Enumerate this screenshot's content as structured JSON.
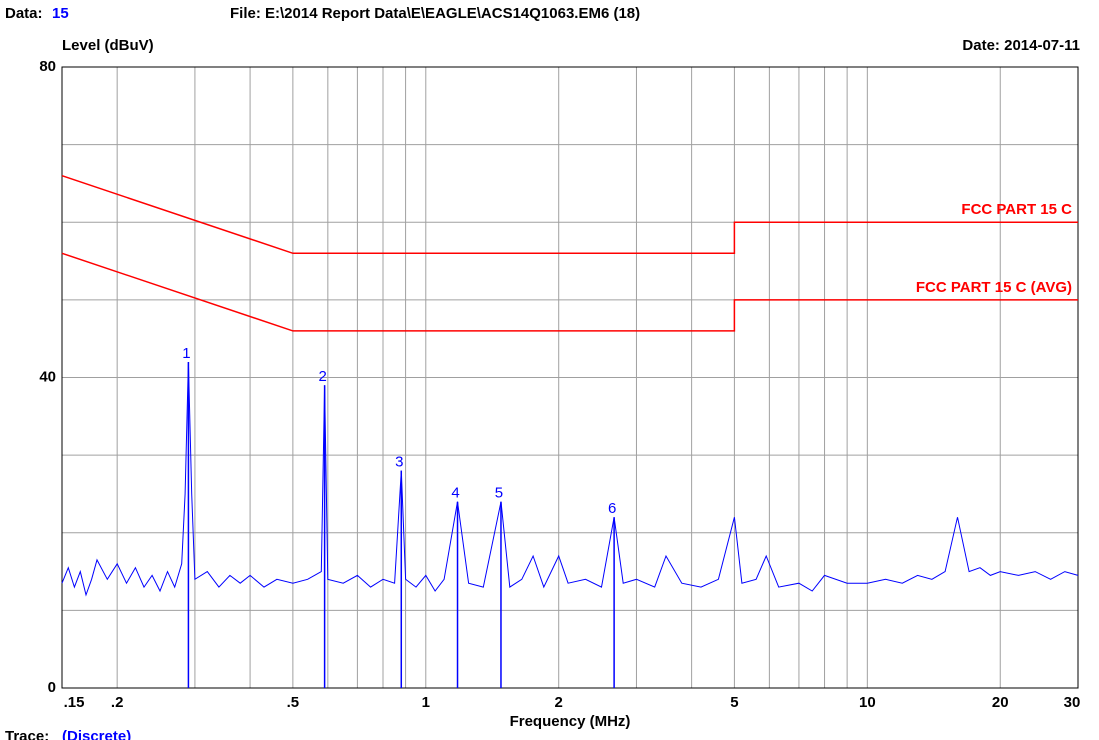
{
  "chart_data": {
    "type": "line",
    "data_label": "Data:",
    "data_number": "15",
    "file": "File: E:\\2014 Report Data\\E\\EAGLE\\ACS14Q1063.EM6  (18)",
    "y_label": "Level (dBuV)",
    "date": "Date: 2014-07-11",
    "x_label": "Frequency (MHz)",
    "trace_label": "Trace:",
    "trace_mode": "(Discrete)",
    "xscale": "log",
    "xlim": [
      0.15,
      30
    ],
    "ylim": [
      0,
      80
    ],
    "yticks": [
      0,
      40,
      80
    ],
    "ygrid": [
      10,
      20,
      30,
      40,
      50,
      60,
      70
    ],
    "xticks": [
      {
        "value": 0.15,
        "label": ".15"
      },
      {
        "value": 0.2,
        "label": ".2"
      },
      {
        "value": 0.5,
        "label": ".5"
      },
      1,
      2,
      5,
      10,
      20,
      30
    ],
    "xgrid": [
      0.2,
      0.3,
      0.4,
      0.5,
      0.6,
      0.7,
      0.8,
      0.9,
      1,
      2,
      3,
      4,
      5,
      6,
      7,
      8,
      9,
      10,
      20
    ],
    "series": [
      {
        "name": "FCC PART 15 C",
        "color": "#ff0000",
        "x": [
          0.15,
          0.5,
          5,
          5,
          30
        ],
        "values": [
          66,
          56,
          56,
          60,
          60
        ]
      },
      {
        "name": "FCC PART 15 C (AVG)",
        "color": "#ff0000",
        "x": [
          0.15,
          0.5,
          5,
          5,
          30
        ],
        "values": [
          56,
          46,
          46,
          50,
          50
        ]
      },
      {
        "color": "#0000ff",
        "x": [
          0.15,
          0.155,
          0.16,
          0.165,
          0.17,
          0.175,
          0.18,
          0.19,
          0.2,
          0.21,
          0.22,
          0.23,
          0.24,
          0.25,
          0.26,
          0.27,
          0.28,
          0.285,
          0.29,
          0.295,
          0.3,
          0.32,
          0.34,
          0.36,
          0.38,
          0.4,
          0.43,
          0.46,
          0.5,
          0.54,
          0.58,
          0.59,
          0.6,
          0.65,
          0.7,
          0.75,
          0.8,
          0.85,
          0.88,
          0.9,
          0.95,
          1.0,
          1.05,
          1.1,
          1.18,
          1.25,
          1.35,
          1.48,
          1.55,
          1.65,
          1.75,
          1.85,
          2.0,
          2.1,
          2.3,
          2.5,
          2.67,
          2.8,
          3.0,
          3.3,
          3.5,
          3.8,
          4.2,
          4.6,
          5.0,
          5.2,
          5.6,
          5.9,
          6.3,
          7,
          7.5,
          8,
          9,
          10,
          11,
          12,
          13,
          14,
          15,
          16,
          17,
          18,
          19,
          20,
          22,
          24,
          26,
          28,
          30
        ],
        "values": [
          13.5,
          15.5,
          13,
          15,
          12,
          14,
          16.5,
          14,
          16,
          13.5,
          15.5,
          13,
          14.5,
          12.5,
          15,
          13,
          16,
          25,
          42,
          25,
          14,
          15,
          13,
          14.5,
          13.5,
          14.5,
          13,
          14,
          13.5,
          14,
          15,
          39,
          14,
          13.5,
          14.5,
          13,
          14,
          13.5,
          28,
          14,
          13,
          14.5,
          12.5,
          14,
          24,
          13.5,
          13,
          24,
          13,
          14,
          17,
          13,
          17,
          13.5,
          14,
          13,
          22,
          13.5,
          14,
          13,
          17,
          13.5,
          13,
          14,
          22,
          13.5,
          14,
          17,
          13,
          13.5,
          12.5,
          14.5,
          13.5,
          13.5,
          14,
          13.5,
          14.5,
          14,
          15,
          22,
          15,
          15.5,
          14.5,
          15,
          14.5,
          15,
          14,
          15,
          14.5
        ]
      }
    ],
    "markers": {
      "color": "#0000ff",
      "labels": [
        "1",
        "2",
        "3",
        "4",
        "5",
        "6"
      ],
      "x": [
        0.29,
        0.59,
        0.88,
        1.18,
        1.48,
        2.67
      ],
      "values": [
        42,
        39,
        28,
        24,
        24,
        22
      ]
    }
  }
}
